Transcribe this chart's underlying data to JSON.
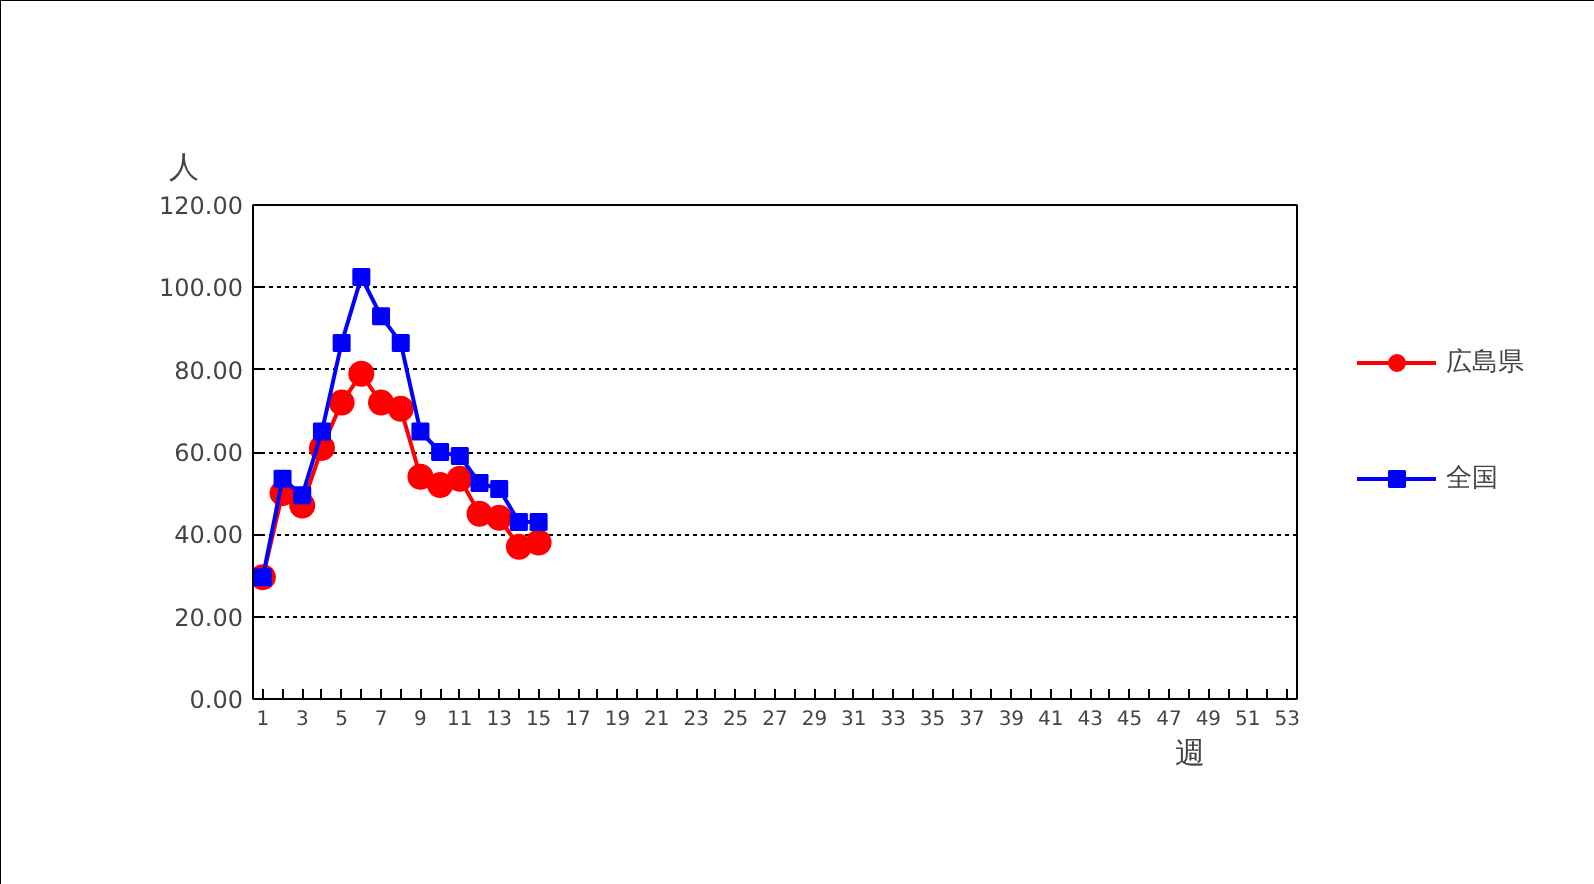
{
  "chart_data": {
    "type": "line",
    "ylabel": "人",
    "xlabel": "週",
    "x": [
      1,
      2,
      3,
      4,
      5,
      6,
      7,
      8,
      9,
      10,
      11,
      12,
      13,
      14,
      15
    ],
    "xlim": [
      0.5,
      53.5
    ],
    "xticks": [
      1,
      {
        "value": 2,
        "label": null
      },
      3,
      {
        "value": 4,
        "label": null
      },
      5,
      {
        "value": 6,
        "label": null
      },
      7,
      {
        "value": 8,
        "label": null
      },
      9,
      {
        "value": 10,
        "label": null
      },
      11,
      {
        "value": 12,
        "label": null
      },
      13,
      {
        "value": 14,
        "label": null
      },
      15,
      {
        "value": 16,
        "label": null
      },
      17,
      {
        "value": 18,
        "label": null
      },
      19,
      {
        "value": 20,
        "label": null
      },
      21,
      {
        "value": 22,
        "label": null
      },
      23,
      {
        "value": 24,
        "label": null
      },
      25,
      {
        "value": 26,
        "label": null
      },
      27,
      {
        "value": 28,
        "label": null
      },
      29,
      {
        "value": 30,
        "label": null
      },
      31,
      {
        "value": 32,
        "label": null
      },
      33,
      {
        "value": 34,
        "label": null
      },
      35,
      {
        "value": 36,
        "label": null
      },
      37,
      {
        "value": 38,
        "label": null
      },
      39,
      {
        "value": 40,
        "label": null
      },
      41,
      {
        "value": 42,
        "label": null
      },
      43,
      {
        "value": 44,
        "label": null
      },
      45,
      {
        "value": 46,
        "label": null
      },
      47,
      {
        "value": 48,
        "label": null
      },
      49,
      {
        "value": 50,
        "label": null
      },
      51,
      {
        "value": 52,
        "label": null
      },
      53
    ],
    "series": [
      {
        "name": "広島県",
        "color": "#ff0000",
        "marker": "circle",
        "values": [
          29.6,
          50,
          47,
          61,
          72,
          79,
          72,
          70.5,
          54,
          52,
          53.5,
          45,
          44,
          37,
          38
        ]
      },
      {
        "name": "全国",
        "color": "#0000ff",
        "marker": "square",
        "values": [
          29.6,
          53.5,
          49.5,
          65,
          86.5,
          102.5,
          93,
          86.5,
          65,
          60,
          59,
          52.5,
          51,
          43,
          43
        ]
      }
    ],
    "ylim": [
      0,
      120
    ],
    "yticks": [
      {
        "value": 0,
        "label": "0.00"
      },
      {
        "value": 20,
        "label": "20.00"
      },
      {
        "value": 40,
        "label": "40.00"
      },
      {
        "value": 60,
        "label": "60.00"
      },
      {
        "value": 80,
        "label": "80.00"
      },
      {
        "value": 100,
        "label": "100.00"
      },
      {
        "value": 120,
        "label": "120.00"
      }
    ],
    "grid": "y",
    "legend": "right",
    "line_style": "solid"
  }
}
